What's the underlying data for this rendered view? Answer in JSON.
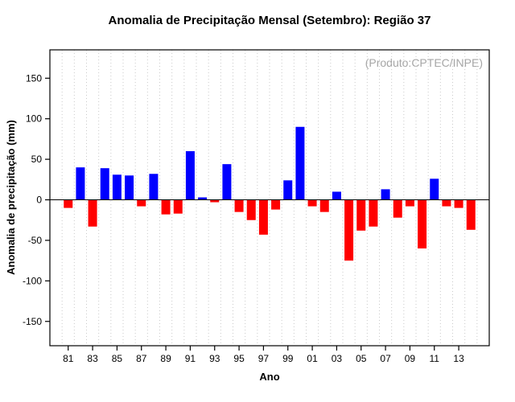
{
  "chart_data": {
    "type": "bar",
    "title": "Anomalia de Precipitação Mensal (Setembro): Região 37",
    "annotation": "(Produto:CPTEC/INPE)",
    "xlabel": "Ano",
    "ylabel": "Anomalia de precipitação (mm)",
    "x_domain": [
      1979.5,
      2015.5
    ],
    "ylim": [
      -180,
      185
    ],
    "yticks": [
      -150,
      -100,
      -50,
      0,
      50,
      100,
      150
    ],
    "xticks": [
      {
        "year": 1981,
        "label": "81"
      },
      {
        "year": 1983,
        "label": "83"
      },
      {
        "year": 1985,
        "label": "85"
      },
      {
        "year": 1987,
        "label": "87"
      },
      {
        "year": 1989,
        "label": "89"
      },
      {
        "year": 1991,
        "label": "91"
      },
      {
        "year": 1993,
        "label": "93"
      },
      {
        "year": 1995,
        "label": "95"
      },
      {
        "year": 1997,
        "label": "97"
      },
      {
        "year": 1999,
        "label": "99"
      },
      {
        "year": 2001,
        "label": "01"
      },
      {
        "year": 2003,
        "label": "03"
      },
      {
        "year": 2005,
        "label": "05"
      },
      {
        "year": 2007,
        "label": "07"
      },
      {
        "year": 2009,
        "label": "09"
      },
      {
        "year": 2011,
        "label": "11"
      },
      {
        "year": 2013,
        "label": "13"
      }
    ],
    "years": [
      1981,
      1982,
      1983,
      1984,
      1985,
      1986,
      1987,
      1988,
      1989,
      1990,
      1991,
      1992,
      1993,
      1994,
      1995,
      1996,
      1997,
      1998,
      1999,
      2000,
      2001,
      2002,
      2003,
      2004,
      2005,
      2006,
      2007,
      2008,
      2009,
      2010,
      2011,
      2012,
      2013,
      2014
    ],
    "values": [
      -10,
      40,
      -33,
      39,
      31,
      30,
      -8,
      32,
      -18,
      -17,
      60,
      3,
      -3,
      44,
      -15,
      -25,
      -43,
      -12,
      24,
      90,
      -8,
      -15,
      10,
      -75,
      -38,
      -33,
      13,
      -22,
      -8,
      -60,
      26,
      -8,
      -10,
      -37
    ],
    "legend": "none",
    "grid": "vertical-dotted",
    "colors": {
      "positive": "#0000ff",
      "negative": "#ff0000",
      "grid": "#c9c9c9",
      "axis": "#000000",
      "annotation": "#a6a6a6",
      "background": "#ffffff"
    }
  }
}
